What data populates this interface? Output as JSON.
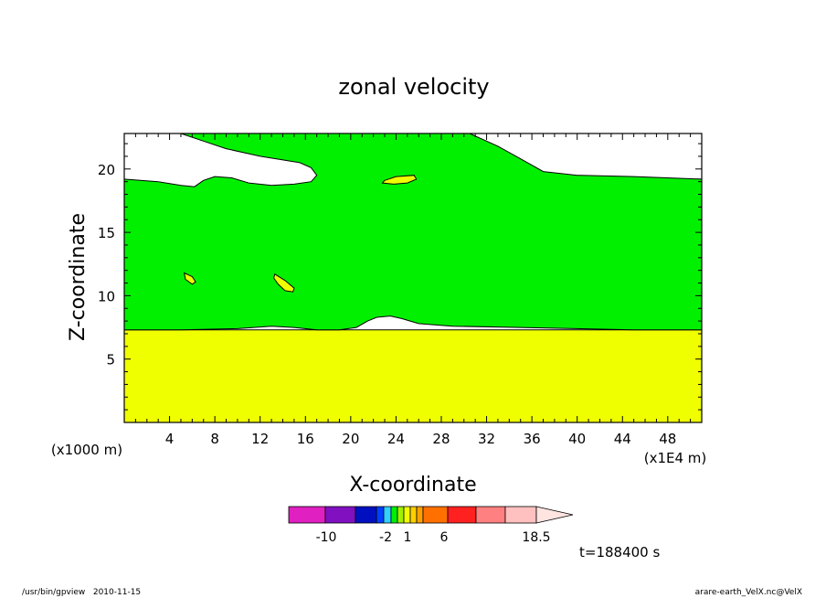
{
  "chart_data": {
    "type": "contour",
    "title": "zonal velocity",
    "xlabel": "X-coordinate",
    "ylabel": "Z-coordinate",
    "x_unit_label": "(x1000 m)",
    "x_scale_label": "(x1E4 m)",
    "x_ticks": [
      4,
      8,
      12,
      16,
      20,
      24,
      28,
      32,
      36,
      40,
      44,
      48
    ],
    "y_ticks": [
      5,
      10,
      15,
      20
    ],
    "xlim": [
      0,
      51
    ],
    "ylim": [
      0,
      22.8
    ],
    "time_label": "t=188400 s",
    "regions": [
      {
        "name": "lower",
        "color": "#f0ff00",
        "points": [
          [
            0,
            0
          ],
          [
            51,
            0
          ],
          [
            51,
            7.3
          ],
          [
            0,
            7.3
          ]
        ]
      },
      {
        "name": "main",
        "color": "#00f000",
        "points": [
          [
            0,
            7.3
          ],
          [
            5,
            7.3
          ],
          [
            10,
            7.4
          ],
          [
            13,
            7.6
          ],
          [
            15,
            7.5
          ],
          [
            17,
            7.3
          ],
          [
            19,
            7.3
          ],
          [
            20.5,
            7.5
          ],
          [
            21.5,
            8.0
          ],
          [
            22.3,
            8.3
          ],
          [
            23.5,
            8.4
          ],
          [
            24.5,
            8.2
          ],
          [
            26,
            7.8
          ],
          [
            29,
            7.6
          ],
          [
            35,
            7.5
          ],
          [
            45,
            7.3
          ],
          [
            51,
            7.3
          ],
          [
            51,
            19.2
          ],
          [
            45,
            19.4
          ],
          [
            40,
            19.5
          ],
          [
            37,
            19.8
          ],
          [
            35,
            20.8
          ],
          [
            33,
            21.8
          ],
          [
            30.5,
            22.8
          ],
          [
            5,
            22.8
          ],
          [
            7,
            22.2
          ],
          [
            9,
            21.6
          ],
          [
            12,
            21.0
          ],
          [
            15.5,
            20.5
          ],
          [
            16.5,
            20.1
          ],
          [
            17,
            19.5
          ],
          [
            16.5,
            19.0
          ],
          [
            15,
            18.8
          ],
          [
            13,
            18.7
          ],
          [
            11,
            18.9
          ],
          [
            9.5,
            19.3
          ],
          [
            8,
            19.4
          ],
          [
            7,
            19.1
          ],
          [
            6.2,
            18.6
          ],
          [
            5,
            18.7
          ],
          [
            3,
            19.0
          ],
          [
            0,
            19.2
          ]
        ]
      },
      {
        "name": "cell-a",
        "color": "#f0ff00",
        "points": [
          [
            23,
            19.1
          ],
          [
            24,
            19.4
          ],
          [
            25.6,
            19.5
          ],
          [
            25.8,
            19.2
          ],
          [
            25,
            18.9
          ],
          [
            23.8,
            18.8
          ],
          [
            22.8,
            18.9
          ]
        ]
      },
      {
        "name": "cell-b",
        "color": "#f0ff00",
        "points": [
          [
            5.3,
            11.8
          ],
          [
            6,
            11.5
          ],
          [
            6.3,
            11.1
          ],
          [
            6,
            10.9
          ],
          [
            5.4,
            11.3
          ]
        ]
      },
      {
        "name": "cell-c",
        "color": "#f0ff00",
        "points": [
          [
            13.3,
            11.7
          ],
          [
            14.2,
            11.2
          ],
          [
            15,
            10.6
          ],
          [
            14.9,
            10.3
          ],
          [
            14.2,
            10.4
          ],
          [
            13.6,
            10.9
          ],
          [
            13.2,
            11.4
          ]
        ]
      }
    ],
    "colorbar": {
      "colors": [
        "#e020c0",
        "#8010c0",
        "#0010c0",
        "#0040ff",
        "#30d0ff",
        "#00f000",
        "#a0f000",
        "#f0ff00",
        "#ffd000",
        "#ffa000",
        "#ff7000",
        "#ff2020",
        "#ff8080",
        "#ffc0c0"
      ],
      "labels": [
        "-10",
        "-2",
        "1",
        "6",
        "18.5"
      ]
    }
  },
  "footer": {
    "left": "/usr/bin/gpview   2010-11-15",
    "right": "arare-earth_VelX.nc@VelX"
  }
}
